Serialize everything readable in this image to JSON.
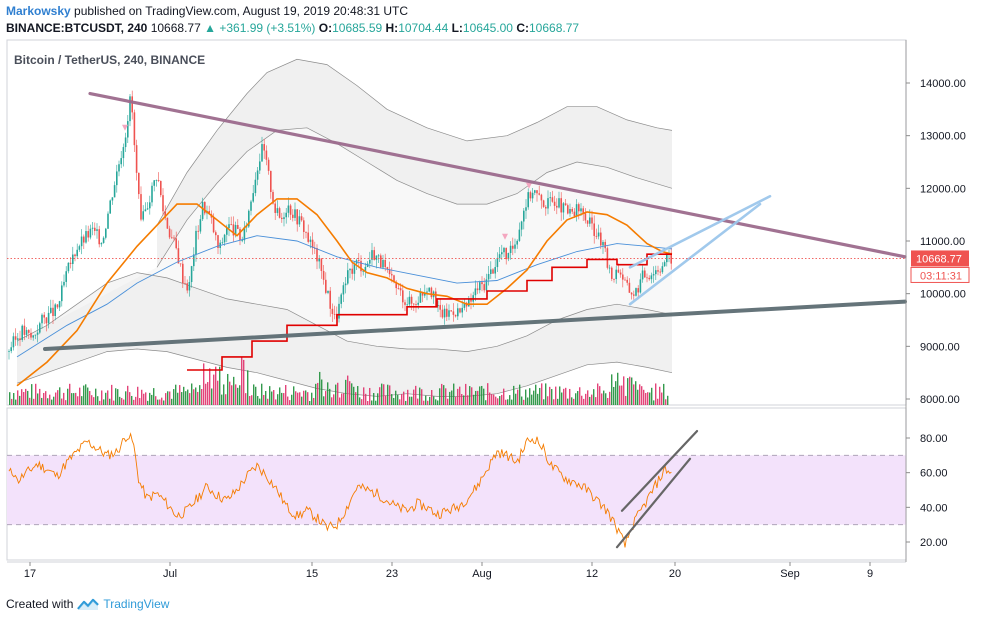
{
  "header": {
    "author": "Markowsky",
    "published": "published on TradingView.com, August 19, 2019 20:48:31 UTC",
    "symbol": "BINANCE:BTCUSDT, 240",
    "last": "10668.77",
    "change": "+361.99 (+3.51%)",
    "o_label": "O:",
    "o_val": "10685.59",
    "h_label": "H:",
    "h_val": "10704.44",
    "l_label": "L:",
    "l_val": "10645.00",
    "c_label": "C:",
    "c_val": "10668.77"
  },
  "colors": {
    "accent": "#2f7fd0",
    "up": "#26a69a",
    "down": "#ef5350",
    "vol_up": "#1e8f3a",
    "vol_down": "#e0306a",
    "ema": "#f57c00",
    "ema_long": "#e00000",
    "channel": "#dcdcdc",
    "trend_upper": "#9c6b8d",
    "trend_lower": "#5d6d73",
    "wedge": "#9cc7ec",
    "rsi_line": "#f57c00",
    "rsi_band": "#f3e2fb",
    "price_tag": "#ef5350",
    "rsi_channel": "#666666"
  },
  "footer": {
    "created_with": "Created with",
    "brand": "TradingView"
  },
  "chart_data": [
    {
      "type": "candlestick",
      "title": "Bitcoin / TetherUS, 240, BINANCE",
      "x_tick_labels": [
        "17",
        "Jul",
        "15",
        "23",
        "Aug",
        "12",
        "20",
        "Sep",
        "9"
      ],
      "y_tick_labels": [
        "14000.00",
        "13000.00",
        "12000.00",
        "11000.00",
        "10000.00",
        "9000.00",
        "8000.00"
      ],
      "ylim": [
        7950,
        14500
      ],
      "price_tag": "10668.77",
      "timer_tag": "03:11:31",
      "close_path": [
        [
          0,
          8900
        ],
        [
          15,
          9300
        ],
        [
          25,
          9150
        ],
        [
          35,
          9500
        ],
        [
          50,
          9700
        ],
        [
          60,
          10400
        ],
        [
          70,
          10900
        ],
        [
          85,
          11200
        ],
        [
          95,
          11000
        ],
        [
          105,
          11900
        ],
        [
          112,
          12500
        ],
        [
          118,
          13000
        ],
        [
          124,
          13800
        ],
        [
          128,
          12600
        ],
        [
          134,
          11300
        ],
        [
          142,
          11800
        ],
        [
          150,
          12300
        ],
        [
          156,
          11600
        ],
        [
          162,
          11200
        ],
        [
          170,
          10800
        ],
        [
          176,
          10300
        ],
        [
          182,
          10100
        ],
        [
          188,
          11000
        ],
        [
          196,
          11700
        ],
        [
          204,
          11400
        ],
        [
          212,
          10800
        ],
        [
          220,
          11300
        ],
        [
          228,
          11200
        ],
        [
          236,
          11000
        ],
        [
          244,
          11800
        ],
        [
          250,
          12400
        ],
        [
          256,
          12800
        ],
        [
          262,
          12200
        ],
        [
          268,
          11600
        ],
        [
          274,
          11400
        ],
        [
          280,
          11700
        ],
        [
          288,
          11500
        ],
        [
          296,
          11300
        ],
        [
          302,
          11000
        ],
        [
          310,
          10700
        ],
        [
          316,
          10300
        ],
        [
          322,
          9900
        ],
        [
          328,
          9500
        ],
        [
          334,
          9900
        ],
        [
          342,
          10400
        ],
        [
          350,
          10600
        ],
        [
          358,
          10500
        ],
        [
          366,
          10800
        ],
        [
          374,
          10600
        ],
        [
          382,
          10300
        ],
        [
          390,
          10100
        ],
        [
          398,
          9900
        ],
        [
          406,
          9800
        ],
        [
          414,
          10000
        ],
        [
          422,
          10200
        ],
        [
          430,
          9700
        ],
        [
          438,
          9600
        ],
        [
          446,
          9700
        ],
        [
          454,
          9650
        ],
        [
          462,
          9800
        ],
        [
          470,
          10100
        ],
        [
          478,
          10200
        ],
        [
          486,
          10500
        ],
        [
          494,
          10800
        ],
        [
          502,
          10700
        ],
        [
          510,
          11100
        ],
        [
          518,
          11700
        ],
        [
          526,
          12000
        ],
        [
          532,
          11800
        ],
        [
          540,
          11700
        ],
        [
          548,
          11800
        ],
        [
          556,
          11600
        ],
        [
          564,
          11500
        ],
        [
          572,
          11600
        ],
        [
          580,
          11400
        ],
        [
          588,
          11200
        ],
        [
          596,
          10900
        ],
        [
          604,
          10300
        ],
        [
          612,
          10500
        ],
        [
          620,
          10100
        ],
        [
          628,
          10000
        ],
        [
          636,
          10350
        ],
        [
          644,
          10400
        ],
        [
          652,
          10500
        ],
        [
          660,
          10670
        ],
        [
          665,
          10680
        ]
      ],
      "ema_short_path": [
        [
          10,
          8250
        ],
        [
          40,
          8700
        ],
        [
          70,
          9300
        ],
        [
          100,
          10200
        ],
        [
          130,
          10900
        ],
        [
          155,
          11400
        ],
        [
          170,
          11700
        ],
        [
          190,
          11700
        ],
        [
          210,
          11400
        ],
        [
          230,
          11100
        ],
        [
          250,
          11500
        ],
        [
          270,
          11800
        ],
        [
          290,
          11800
        ],
        [
          310,
          11500
        ],
        [
          330,
          11000
        ],
        [
          345,
          10600
        ],
        [
          360,
          10400
        ],
        [
          380,
          10300
        ],
        [
          400,
          10100
        ],
        [
          420,
          10000
        ],
        [
          440,
          9950
        ],
        [
          460,
          9800
        ],
        [
          480,
          9800
        ],
        [
          500,
          10100
        ],
        [
          520,
          10450
        ],
        [
          540,
          11000
        ],
        [
          560,
          11400
        ],
        [
          580,
          11550
        ],
        [
          600,
          11500
        ],
        [
          620,
          11300
        ],
        [
          640,
          10950
        ],
        [
          655,
          10800
        ],
        [
          665,
          10750
        ]
      ],
      "ema_long_path": [
        [
          180,
          8550
        ],
        [
          215,
          8550
        ],
        [
          215,
          8800
        ],
        [
          245,
          8800
        ],
        [
          245,
          9100
        ],
        [
          280,
          9100
        ],
        [
          280,
          9400
        ],
        [
          330,
          9400
        ],
        [
          330,
          9600
        ],
        [
          400,
          9600
        ],
        [
          400,
          9750
        ],
        [
          430,
          9750
        ],
        [
          430,
          9900
        ],
        [
          480,
          9900
        ],
        [
          480,
          10050
        ],
        [
          520,
          10050
        ],
        [
          520,
          10250
        ],
        [
          545,
          10250
        ],
        [
          545,
          10500
        ],
        [
          580,
          10500
        ],
        [
          580,
          10650
        ],
        [
          610,
          10650
        ],
        [
          610,
          10550
        ],
        [
          640,
          10550
        ],
        [
          640,
          10750
        ],
        [
          665,
          10750
        ]
      ],
      "ma_blue_path": [
        [
          10,
          8800
        ],
        [
          60,
          9400
        ],
        [
          100,
          9800
        ],
        [
          130,
          10200
        ],
        [
          170,
          10600
        ],
        [
          210,
          10900
        ],
        [
          250,
          11100
        ],
        [
          290,
          11000
        ],
        [
          330,
          10700
        ],
        [
          370,
          10500
        ],
        [
          410,
          10350
        ],
        [
          450,
          10200
        ],
        [
          490,
          10250
        ],
        [
          530,
          10550
        ],
        [
          570,
          10800
        ],
        [
          610,
          10950
        ],
        [
          640,
          10900
        ],
        [
          665,
          10850
        ]
      ],
      "channel_upper": [
        [
          150,
          11300
        ],
        [
          180,
          12300
        ],
        [
          210,
          13100
        ],
        [
          240,
          13800
        ],
        [
          260,
          14200
        ],
        [
          290,
          14450
        ],
        [
          320,
          14350
        ],
        [
          350,
          13950
        ],
        [
          380,
          13500
        ],
        [
          420,
          13150
        ],
        [
          460,
          12900
        ],
        [
          500,
          13000
        ],
        [
          530,
          13250
        ],
        [
          560,
          13550
        ],
        [
          590,
          13550
        ],
        [
          620,
          13300
        ],
        [
          650,
          13150
        ],
        [
          665,
          13100
        ]
      ],
      "channel_mid_upper": [
        [
          150,
          10500
        ],
        [
          180,
          11400
        ],
        [
          210,
          12100
        ],
        [
          240,
          12700
        ],
        [
          270,
          13100
        ],
        [
          300,
          13150
        ],
        [
          330,
          12850
        ],
        [
          360,
          12500
        ],
        [
          390,
          12150
        ],
        [
          420,
          11900
        ],
        [
          450,
          11700
        ],
        [
          480,
          11700
        ],
        [
          510,
          11900
        ],
        [
          540,
          12300
        ],
        [
          570,
          12500
        ],
        [
          600,
          12400
        ],
        [
          630,
          12200
        ],
        [
          665,
          12000
        ]
      ],
      "channel_mid_lower": [
        [
          10,
          9100
        ],
        [
          40,
          9400
        ],
        [
          70,
          9800
        ],
        [
          100,
          10200
        ],
        [
          130,
          10400
        ],
        [
          160,
          10300
        ],
        [
          190,
          10100
        ],
        [
          220,
          9900
        ],
        [
          250,
          9800
        ],
        [
          280,
          9700
        ],
        [
          310,
          9400
        ],
        [
          340,
          9100
        ],
        [
          370,
          9000
        ],
        [
          400,
          8950
        ],
        [
          430,
          8950
        ],
        [
          460,
          8900
        ],
        [
          490,
          9000
        ],
        [
          520,
          9200
        ],
        [
          550,
          9500
        ],
        [
          580,
          9700
        ],
        [
          610,
          9800
        ],
        [
          640,
          9700
        ],
        [
          665,
          9600
        ]
      ],
      "channel_lower": [
        [
          10,
          8300
        ],
        [
          40,
          8500
        ],
        [
          70,
          8700
        ],
        [
          100,
          8900
        ],
        [
          130,
          8950
        ],
        [
          160,
          8900
        ],
        [
          190,
          8750
        ],
        [
          220,
          8600
        ],
        [
          250,
          8500
        ],
        [
          280,
          8350
        ],
        [
          310,
          8200
        ],
        [
          340,
          8100
        ],
        [
          370,
          8050
        ],
        [
          400,
          8100
        ],
        [
          430,
          8050
        ],
        [
          460,
          8050
        ],
        [
          490,
          8100
        ],
        [
          520,
          8250
        ],
        [
          550,
          8450
        ],
        [
          580,
          8650
        ],
        [
          610,
          8700
        ],
        [
          640,
          8600
        ],
        [
          665,
          8500
        ]
      ],
      "volume_profile": "high volatility",
      "trendlines": [
        {
          "name": "upper-resistance",
          "from": [
            90,
            13800
          ],
          "to": [
            905,
            10700
          ]
        },
        {
          "name": "lower-support",
          "from": [
            45,
            8950
          ],
          "to": [
            905,
            9850
          ]
        },
        {
          "name": "wedge-upper",
          "from": [
            630,
            10500
          ],
          "to": [
            770,
            11850
          ]
        },
        {
          "name": "wedge-lower",
          "from": [
            630,
            9800
          ],
          "to": [
            760,
            11700
          ]
        }
      ]
    },
    {
      "type": "line",
      "title": "RSI",
      "y_tick_labels": [
        "80.00",
        "60.00",
        "40.00",
        "20.00"
      ],
      "ylim": [
        15,
        90
      ],
      "band": [
        30,
        70
      ],
      "rsi_path": [
        [
          10,
          55
        ],
        [
          20,
          60
        ],
        [
          30,
          65
        ],
        [
          40,
          62
        ],
        [
          50,
          58
        ],
        [
          60,
          66
        ],
        [
          70,
          72
        ],
        [
          80,
          78
        ],
        [
          90,
          74
        ],
        [
          100,
          70
        ],
        [
          110,
          72
        ],
        [
          120,
          82
        ],
        [
          126,
          78
        ],
        [
          132,
          55
        ],
        [
          140,
          45
        ],
        [
          150,
          48
        ],
        [
          160,
          42
        ],
        [
          170,
          35
        ],
        [
          180,
          38
        ],
        [
          190,
          45
        ],
        [
          200,
          52
        ],
        [
          210,
          47
        ],
        [
          220,
          44
        ],
        [
          230,
          50
        ],
        [
          240,
          58
        ],
        [
          250,
          64
        ],
        [
          260,
          58
        ],
        [
          270,
          50
        ],
        [
          280,
          40
        ],
        [
          290,
          35
        ],
        [
          300,
          38
        ],
        [
          310,
          34
        ],
        [
          320,
          28
        ],
        [
          330,
          30
        ],
        [
          340,
          40
        ],
        [
          350,
          52
        ],
        [
          360,
          50
        ],
        [
          370,
          48
        ],
        [
          380,
          44
        ],
        [
          390,
          40
        ],
        [
          400,
          38
        ],
        [
          410,
          42
        ],
        [
          420,
          40
        ],
        [
          430,
          36
        ],
        [
          440,
          38
        ],
        [
          450,
          40
        ],
        [
          460,
          45
        ],
        [
          470,
          52
        ],
        [
          480,
          62
        ],
        [
          490,
          72
        ],
        [
          500,
          70
        ],
        [
          510,
          66
        ],
        [
          520,
          78
        ],
        [
          528,
          80
        ],
        [
          536,
          74
        ],
        [
          544,
          64
        ],
        [
          552,
          60
        ],
        [
          560,
          56
        ],
        [
          570,
          54
        ],
        [
          580,
          50
        ],
        [
          590,
          44
        ],
        [
          600,
          38
        ],
        [
          610,
          28
        ],
        [
          618,
          18
        ],
        [
          626,
          30
        ],
        [
          634,
          38
        ],
        [
          642,
          46
        ],
        [
          650,
          54
        ],
        [
          658,
          62
        ],
        [
          665,
          60
        ]
      ],
      "rsi_channel": [
        {
          "from": [
            622,
            38
          ],
          "to": [
            697,
            84
          ]
        },
        {
          "from": [
            617,
            17
          ],
          "to": [
            690,
            68
          ]
        }
      ]
    }
  ]
}
